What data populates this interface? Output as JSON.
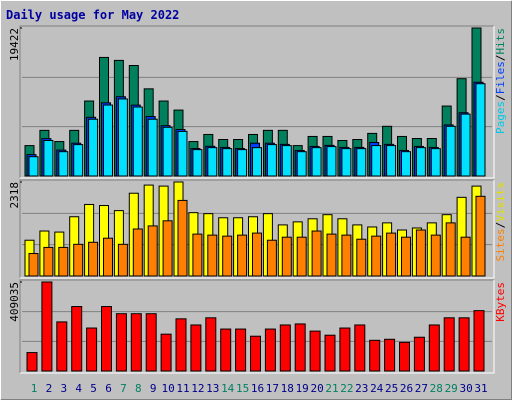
{
  "chart_data": [
    {
      "type": "bar",
      "title": "Daily usage for May 2022",
      "ylim": [
        0,
        19422
      ],
      "yticks": [
        19422
      ],
      "grid": true,
      "legend_separator": "/",
      "series": [
        {
          "name": "Hits",
          "color": "#00805c",
          "label_color": "#00805c",
          "values": [
            3990,
            5990,
            4520,
            5990,
            9840,
            15560,
            15170,
            14500,
            11440,
            9840,
            8650,
            4520,
            5450,
            4790,
            4790,
            5450,
            5990,
            5990,
            3990,
            5190,
            5190,
            4660,
            4790,
            5590,
            6520,
            5190,
            4920,
            4920,
            9180,
            12770,
            19422
          ]
        },
        {
          "name": "Files",
          "color": "#0040ff",
          "label_color": "#0040ff",
          "values": [
            2800,
            4900,
            3400,
            4300,
            7700,
            9600,
            10400,
            9300,
            7800,
            6600,
            6100,
            3600,
            3900,
            3750,
            3600,
            4300,
            4300,
            4150,
            3350,
            3880,
            4020,
            3750,
            3750,
            4400,
            4150,
            3350,
            3880,
            3750,
            6700,
            8300,
            12300
          ]
        },
        {
          "name": "Pages",
          "color": "#00e0ff",
          "label_color": "#00c8e8",
          "values": [
            2530,
            4660,
            3190,
            4120,
            7450,
            9310,
            10110,
            9050,
            7450,
            6390,
            5850,
            3460,
            3720,
            3590,
            3460,
            3720,
            4120,
            3990,
            3190,
            3720,
            3860,
            3590,
            3590,
            3990,
            3990,
            3190,
            3720,
            3590,
            6520,
            8120,
            12110
          ]
        }
      ]
    },
    {
      "type": "bar",
      "ylim": [
        0,
        2318
      ],
      "yticks": [
        2318
      ],
      "grid": true,
      "legend_separator": "/",
      "series": [
        {
          "name": "Visits",
          "color": "#ffff00",
          "label_color": "#e0e000",
          "values": [
            882,
            1109,
            1083,
            1461,
            1764,
            1738,
            1612,
            2041,
            2242,
            2217,
            2318,
            1562,
            1537,
            1436,
            1436,
            1461,
            1537,
            1260,
            1335,
            1411,
            1512,
            1411,
            1260,
            1209,
            1310,
            1134,
            1184,
            1310,
            1512,
            1940,
            2217
          ]
        },
        {
          "name": "Sites",
          "color": "#ff8000",
          "label_color": "#ff8000",
          "values": [
            554,
            705,
            705,
            781,
            831,
            932,
            781,
            1159,
            1235,
            1361,
            1864,
            1033,
            1008,
            983,
            1008,
            1058,
            882,
            957,
            957,
            1109,
            1033,
            1008,
            907,
            983,
            1058,
            957,
            1134,
            1008,
            1310,
            957,
            1965
          ]
        }
      ]
    },
    {
      "type": "bar",
      "ylim": [
        0,
        409035
      ],
      "yticks": [
        409035
      ],
      "grid": true,
      "categories": [
        "1",
        "2",
        "3",
        "4",
        "5",
        "6",
        "7",
        "8",
        "9",
        "10",
        "11",
        "12",
        "13",
        "14",
        "15",
        "16",
        "17",
        "18",
        "19",
        "20",
        "21",
        "22",
        "23",
        "24",
        "25",
        "26",
        "27",
        "28",
        "29",
        "30",
        "31"
      ],
      "category_colors": [
        "#008060",
        "#00008b",
        "#00008b",
        "#00008b",
        "#00008b",
        "#00008b",
        "#008060",
        "#008060",
        "#00008b",
        "#00008b",
        "#00008b",
        "#00008b",
        "#00008b",
        "#008060",
        "#008060",
        "#00008b",
        "#00008b",
        "#00008b",
        "#00008b",
        "#00008b",
        "#008060",
        "#008060",
        "#00008b",
        "#00008b",
        "#00008b",
        "#00008b",
        "#00008b",
        "#008060",
        "#008060",
        "#00008b",
        "#00008b"
      ],
      "series": [
        {
          "name": "KBytes",
          "color": "#ff0000",
          "label_color": "#ff0000",
          "values": [
            84630,
            409035,
            225670,
            296200,
            197470,
            296200,
            263290,
            263290,
            263290,
            169260,
            239780,
            211570,
            244480,
            192760,
            192760,
            159850,
            192760,
            211570,
            216270,
            183360,
            164550,
            197470,
            211570,
            141050,
            145750,
            131640,
            155150,
            211570,
            244480,
            244480,
            277390
          ]
        }
      ]
    }
  ]
}
